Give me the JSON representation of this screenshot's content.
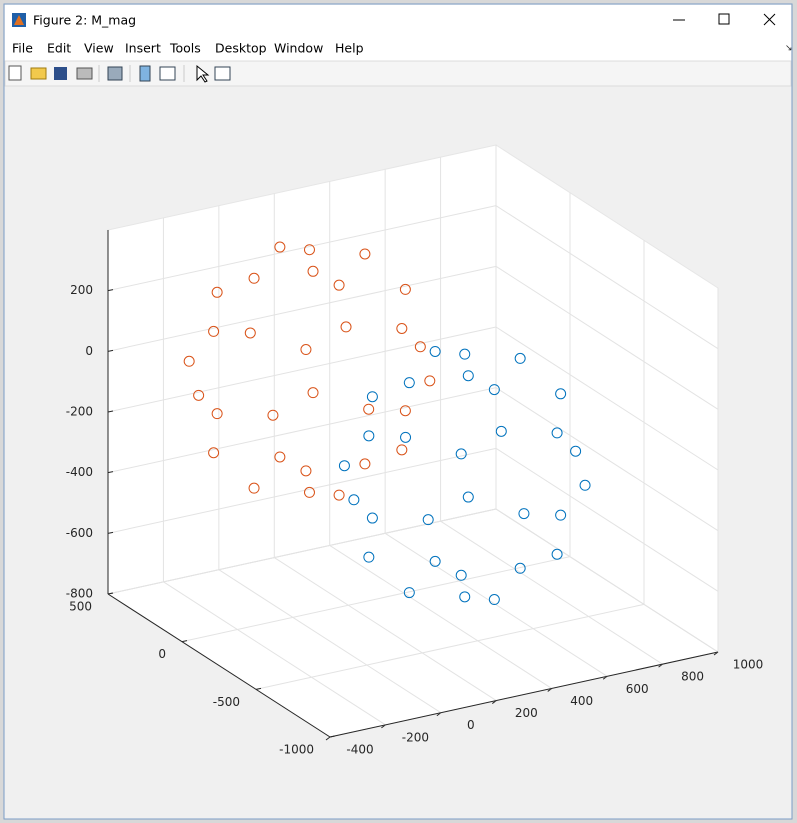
{
  "window": {
    "title": "Figure 2: M_mag",
    "menu": [
      "File",
      "Edit",
      "View",
      "Insert",
      "Tools",
      "Desktop",
      "Window",
      "Help"
    ]
  },
  "chart_data": {
    "type": "scatter3",
    "xlim": [
      -400,
      1000
    ],
    "ylim": [
      -1000,
      500
    ],
    "zlim": [
      -800,
      400
    ],
    "xticks": [
      -400,
      -200,
      0,
      200,
      400,
      600,
      800,
      1000
    ],
    "yticks": [
      -1000,
      -500,
      0,
      500
    ],
    "zticks": [
      -800,
      -600,
      -400,
      -200,
      0,
      200
    ],
    "grid": true,
    "series": [
      {
        "color": "#D95319",
        "x": [
          60,
          60,
          406,
          233,
          -113,
          -286,
          -113,
          233,
          406,
          233,
          -113,
          -286,
          -113,
          233,
          460,
          343,
          60,
          -223,
          -340,
          -223,
          60,
          343,
          260,
          60,
          -140,
          60,
          260,
          60,
          -140,
          60
        ],
        "y": [
          0,
          0,
          0,
          300,
          300,
          0,
          -300,
          -300,
          0,
          300,
          300,
          0,
          -300,
          -300,
          0,
          283,
          400,
          283,
          0,
          -283,
          -400,
          -283,
          0,
          200,
          0,
          -200,
          0,
          200,
          0,
          -200
        ],
        "z": [
          400,
          -400,
          200,
          200,
          200,
          200,
          200,
          200,
          -200,
          -200,
          -200,
          -200,
          -200,
          -200,
          0,
          0,
          0,
          0,
          0,
          0,
          0,
          0,
          346,
          346,
          346,
          346,
          -346,
          -346,
          -346,
          -346
        ]
      },
      {
        "color": "#0072BD",
        "x": [
          460,
          460,
          806,
          633,
          287,
          114,
          287,
          633,
          806,
          633,
          287,
          114,
          287,
          633,
          860,
          743,
          460,
          177,
          60,
          177,
          460,
          743,
          660,
          460,
          260,
          460,
          660,
          460,
          260,
          460
        ],
        "y": [
          -300,
          -300,
          -300,
          0,
          0,
          -300,
          -600,
          -600,
          -300,
          0,
          0,
          -300,
          -600,
          -600,
          -300,
          -17,
          100,
          -17,
          -300,
          -583,
          -700,
          -583,
          -300,
          -100,
          -300,
          -500,
          -300,
          -100,
          -300,
          -500
        ],
        "z": [
          70,
          -730,
          -130,
          -130,
          -130,
          -130,
          -130,
          -130,
          -530,
          -530,
          -530,
          -530,
          -530,
          -530,
          -330,
          -330,
          -330,
          -330,
          -330,
          -330,
          -330,
          -330,
          16,
          16,
          16,
          16,
          -676,
          -676,
          -676,
          -676
        ]
      }
    ]
  }
}
